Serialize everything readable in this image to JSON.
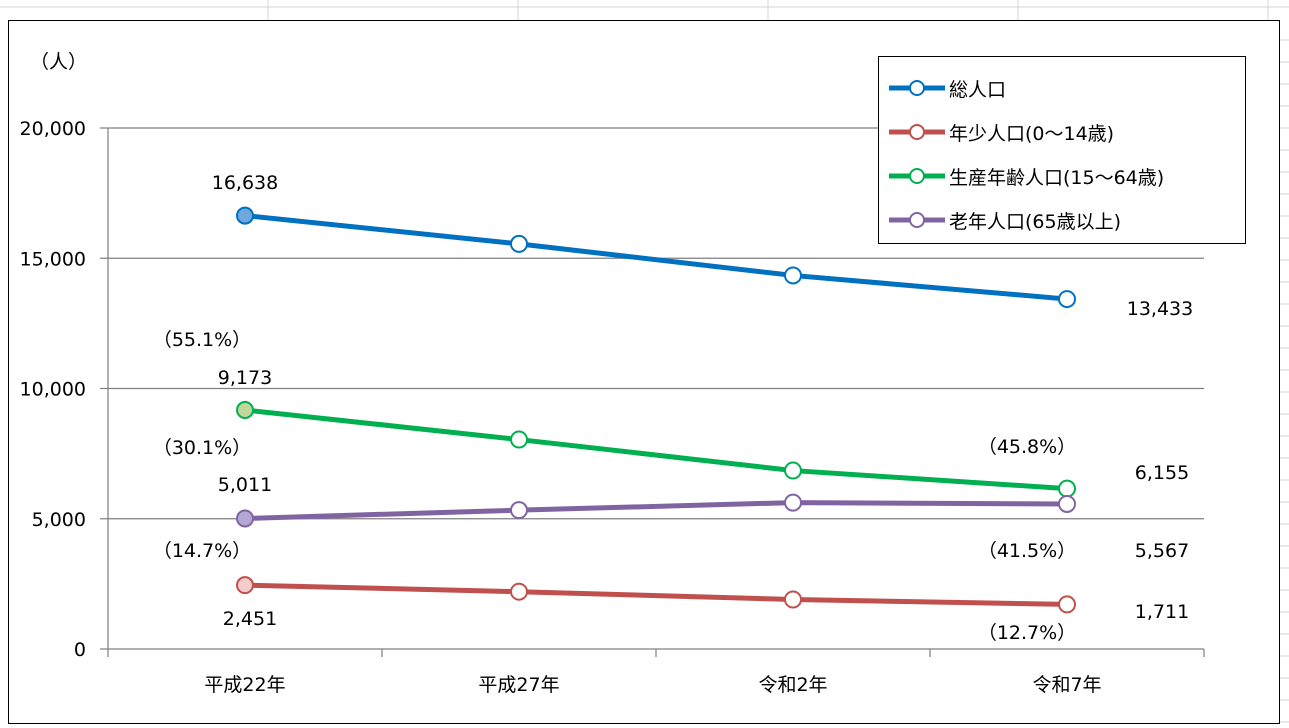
{
  "chart_data": {
    "type": "line",
    "categories": [
      "平成22年",
      "平成27年",
      "令和2年",
      "令和7年"
    ],
    "y_unit_label": "（人）",
    "ylim": [
      0,
      20000
    ],
    "y_ticks": [
      "0",
      "5,000",
      "10,000",
      "15,000",
      "20,000"
    ],
    "grid": true,
    "legend_position": "top-right",
    "series": [
      {
        "name": "総人口",
        "color": "#0070C0",
        "values": [
          16638,
          15550,
          14340,
          13433
        ]
      },
      {
        "name": "年少人口(0～14歳)",
        "color": "#C0504D",
        "values": [
          2451,
          2200,
          1900,
          1711
        ]
      },
      {
        "name": "生産年齢人口(15～64歳)",
        "color": "#00B050",
        "values": [
          9173,
          8040,
          6850,
          6155
        ]
      },
      {
        "name": "老年人口(65歳以上)",
        "color": "#8064A2",
        "values": [
          5011,
          5330,
          5620,
          5567
        ]
      }
    ],
    "annotations": [
      {
        "text": "16,638"
      },
      {
        "text": "13,433"
      },
      {
        "text": "（55.1%）"
      },
      {
        "text": "9,173"
      },
      {
        "text": "（30.1%）"
      },
      {
        "text": "5,011"
      },
      {
        "text": "（14.7%）"
      },
      {
        "text": "2,451"
      },
      {
        "text": "（45.8%）"
      },
      {
        "text": "6,155"
      },
      {
        "text": "（41.5%）"
      },
      {
        "text": "5,567"
      },
      {
        "text": "（12.7%）"
      },
      {
        "text": "1,711"
      }
    ]
  }
}
